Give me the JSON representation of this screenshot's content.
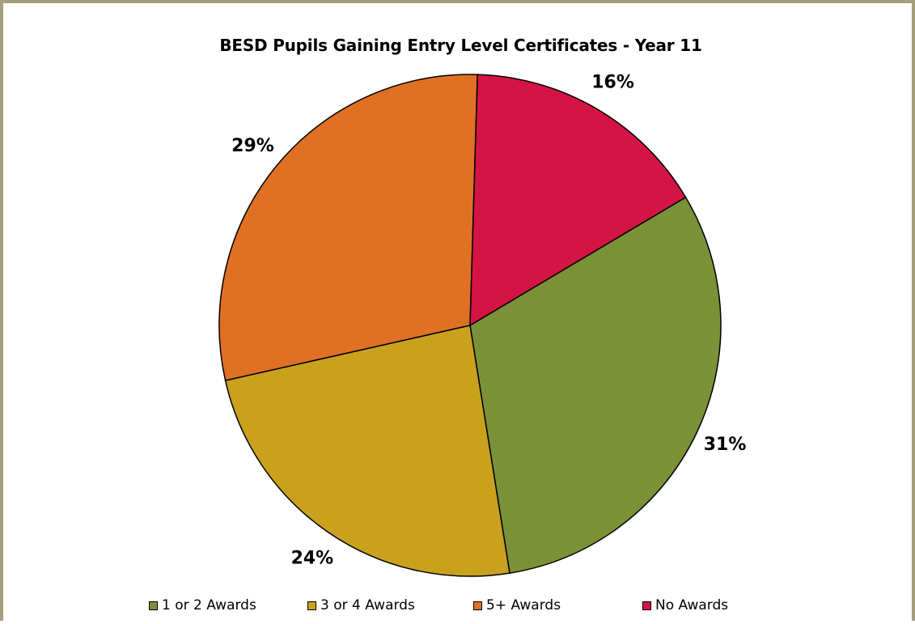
{
  "chart_data": {
    "type": "pie",
    "title": "BESD Pupils Gaining Entry Level Certificates - Year 11",
    "categories": [
      "1 or 2 Awards",
      "3 or 4 Awards",
      "5+ Awards",
      "No Awards"
    ],
    "values": [
      31,
      24,
      29,
      16
    ],
    "labels": [
      "31%",
      "24%",
      "29%",
      "16%"
    ],
    "colors": [
      "#7b9138",
      "#c9a11d",
      "#e07124",
      "#d41444"
    ],
    "legend_position": "bottom"
  }
}
